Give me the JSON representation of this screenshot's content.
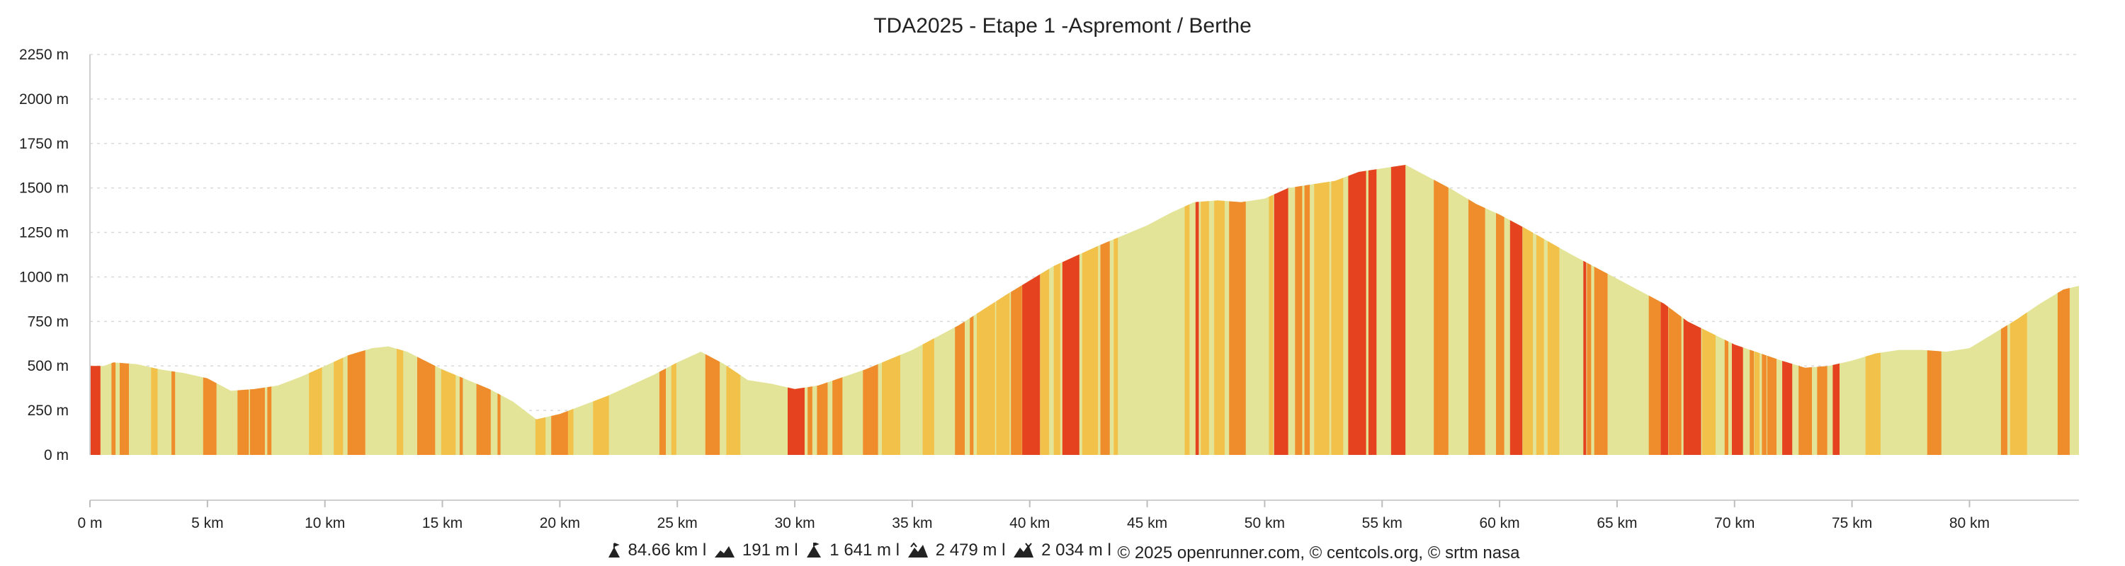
{
  "chart_data": {
    "type": "area",
    "title": "TDA2025 - Etape 1 -Aspremont / Berthe",
    "xlabel": "",
    "ylabel": "",
    "x_unit": "km",
    "y_unit": "m",
    "xlim": [
      0,
      84.66
    ],
    "ylim": [
      0,
      2250
    ],
    "grid": true,
    "legend": "none",
    "y_ticks": [
      "0 m",
      "250 m",
      "500 m",
      "750 m",
      "1000 m",
      "1250 m",
      "1500 m",
      "1750 m",
      "2000 m",
      "2250 m"
    ],
    "x_ticks": [
      "0 m",
      "5 km",
      "10 km",
      "15 km",
      "20 km",
      "25 km",
      "30 km",
      "35 km",
      "40 km",
      "45 km",
      "50 km",
      "55 km",
      "60 km",
      "65 km",
      "70 km",
      "75 km",
      "80 km"
    ],
    "x": [
      0,
      0.6,
      1,
      2,
      3,
      4,
      5,
      6,
      7,
      8,
      9,
      10,
      11,
      12,
      12.7,
      13.5,
      15,
      17,
      18,
      19,
      20,
      22,
      24,
      25,
      26,
      27,
      28,
      29,
      30,
      31,
      33,
      35,
      37,
      39,
      41,
      43,
      45,
      46,
      47,
      48,
      49,
      50,
      51,
      52,
      53,
      54,
      55,
      56,
      57,
      58,
      59,
      60,
      61,
      63,
      64,
      65,
      67,
      68,
      70,
      72,
      73,
      74,
      75,
      76,
      77,
      78,
      79,
      80,
      82,
      83,
      84,
      84.66
    ],
    "y": [
      500,
      500,
      520,
      510,
      480,
      460,
      430,
      360,
      370,
      390,
      440,
      500,
      560,
      600,
      610,
      580,
      480,
      370,
      300,
      200,
      230,
      330,
      450,
      520,
      580,
      510,
      420,
      400,
      370,
      390,
      480,
      590,
      730,
      900,
      1060,
      1180,
      1290,
      1360,
      1420,
      1430,
      1420,
      1440,
      1500,
      1520,
      1540,
      1590,
      1610,
      1630,
      1560,
      1490,
      1410,
      1350,
      1280,
      1130,
      1060,
      990,
      850,
      750,
      620,
      530,
      490,
      500,
      530,
      570,
      590,
      590,
      580,
      600,
      760,
      850,
      930,
      950
    ],
    "slope_color_cycle": [
      "#e3e497",
      "#f2c14a",
      "#ef8c2c",
      "#e3e497",
      "#e5421f",
      "#f2c14a",
      "#e3e497",
      "#ef8c2c"
    ]
  },
  "footer": {
    "distance": "84.66 km l",
    "min_altitude": "191 m l",
    "max_altitude": "1 641 m l",
    "positive_elevation": "2 479 m l",
    "negative_elevation": "2 034 m l",
    "credits": "© 2025 openrunner.com, © centcols.org, © srtm nasa"
  }
}
